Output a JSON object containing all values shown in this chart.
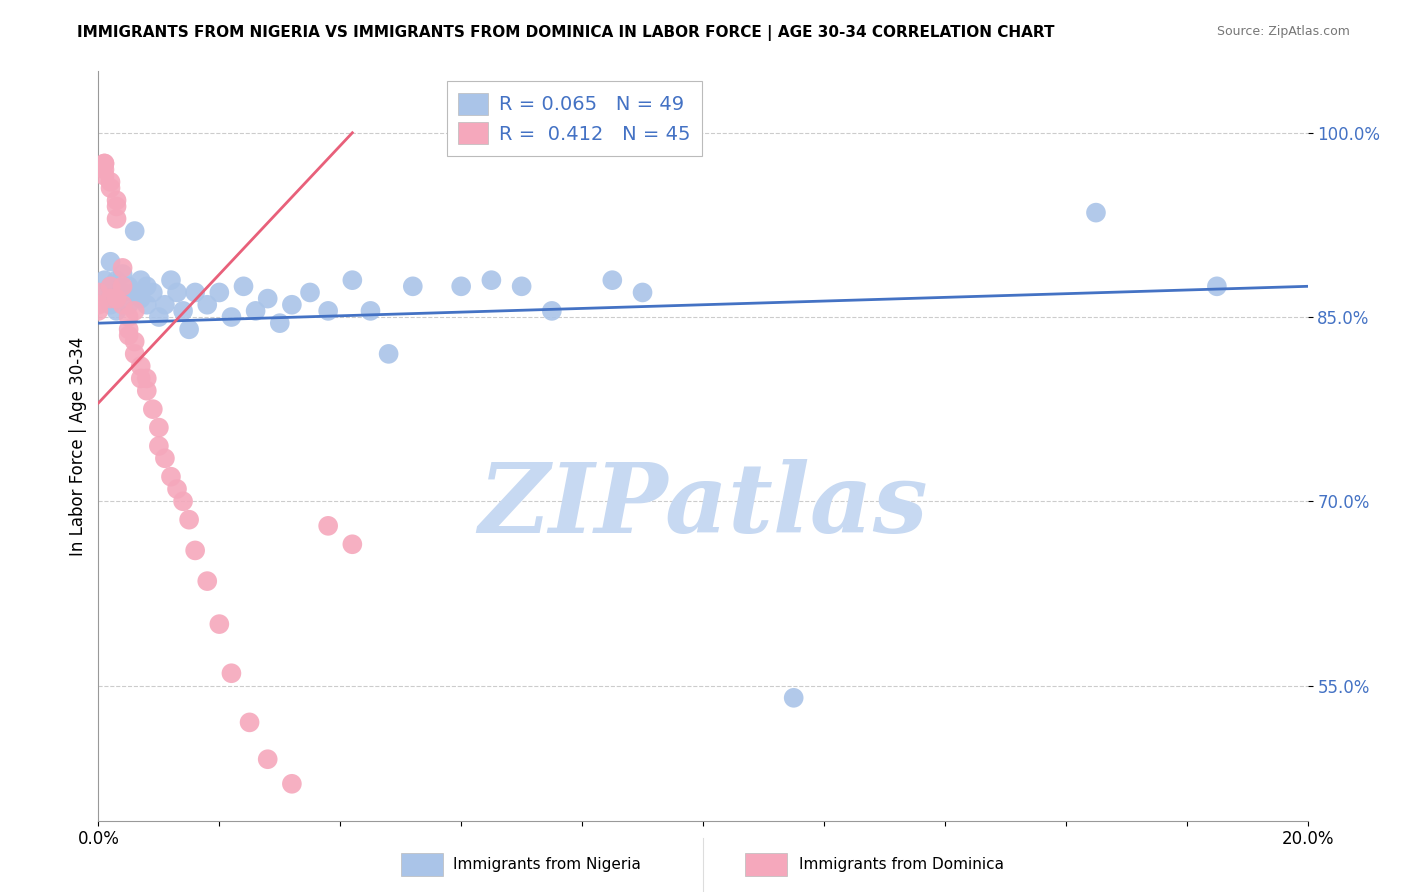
{
  "title": "IMMIGRANTS FROM NIGERIA VS IMMIGRANTS FROM DOMINICA IN LABOR FORCE | AGE 30-34 CORRELATION CHART",
  "source": "Source: ZipAtlas.com",
  "ylabel": "In Labor Force | Age 30-34",
  "xlim": [
    0.0,
    0.2
  ],
  "ylim": [
    0.44,
    1.05
  ],
  "xticks": [
    0.0,
    0.02,
    0.04,
    0.06,
    0.08,
    0.1,
    0.12,
    0.14,
    0.16,
    0.18,
    0.2
  ],
  "xticklabels": [
    "0.0%",
    "",
    "",
    "",
    "",
    "",
    "",
    "",
    "",
    "",
    "20.0%"
  ],
  "ytick_positions": [
    0.55,
    0.7,
    0.85,
    1.0
  ],
  "ytick_labels": [
    "55.0%",
    "70.0%",
    "85.0%",
    "100.0%"
  ],
  "nigeria_R": 0.065,
  "nigeria_N": 49,
  "dominica_R": 0.412,
  "dominica_N": 45,
  "nigeria_color": "#aac4e8",
  "dominica_color": "#f5a8bc",
  "nigeria_line_color": "#4472c4",
  "dominica_line_color": "#e8607a",
  "watermark": "ZIPatlas",
  "watermark_color_r": 0.78,
  "watermark_color_g": 0.85,
  "watermark_color_b": 0.95,
  "nigeria_x": [
    0.001,
    0.001,
    0.002,
    0.002,
    0.002,
    0.003,
    0.003,
    0.003,
    0.004,
    0.004,
    0.005,
    0.005,
    0.006,
    0.006,
    0.007,
    0.007,
    0.008,
    0.008,
    0.009,
    0.01,
    0.011,
    0.012,
    0.013,
    0.014,
    0.015,
    0.016,
    0.018,
    0.02,
    0.022,
    0.024,
    0.026,
    0.028,
    0.03,
    0.032,
    0.035,
    0.038,
    0.042,
    0.045,
    0.048,
    0.052,
    0.06,
    0.065,
    0.07,
    0.075,
    0.085,
    0.09,
    0.115,
    0.165,
    0.185
  ],
  "nigeria_y": [
    0.87,
    0.88,
    0.86,
    0.875,
    0.895,
    0.865,
    0.88,
    0.855,
    0.87,
    0.885,
    0.86,
    0.875,
    0.92,
    0.87,
    0.865,
    0.88,
    0.86,
    0.875,
    0.87,
    0.85,
    0.86,
    0.88,
    0.87,
    0.855,
    0.84,
    0.87,
    0.86,
    0.87,
    0.85,
    0.875,
    0.855,
    0.865,
    0.845,
    0.86,
    0.87,
    0.855,
    0.88,
    0.855,
    0.82,
    0.875,
    0.875,
    0.88,
    0.875,
    0.855,
    0.88,
    0.87,
    0.54,
    0.935,
    0.875
  ],
  "dominica_x": [
    0.0,
    0.0,
    0.0,
    0.001,
    0.001,
    0.001,
    0.001,
    0.002,
    0.002,
    0.002,
    0.002,
    0.003,
    0.003,
    0.003,
    0.003,
    0.004,
    0.004,
    0.004,
    0.005,
    0.005,
    0.005,
    0.006,
    0.006,
    0.006,
    0.007,
    0.007,
    0.008,
    0.008,
    0.009,
    0.01,
    0.01,
    0.011,
    0.012,
    0.013,
    0.014,
    0.015,
    0.016,
    0.018,
    0.02,
    0.022,
    0.025,
    0.028,
    0.032,
    0.038,
    0.042
  ],
  "dominica_y": [
    0.87,
    0.86,
    0.855,
    0.975,
    0.975,
    0.97,
    0.965,
    0.96,
    0.955,
    0.875,
    0.865,
    0.945,
    0.94,
    0.93,
    0.865,
    0.89,
    0.875,
    0.86,
    0.85,
    0.84,
    0.835,
    0.855,
    0.83,
    0.82,
    0.81,
    0.8,
    0.8,
    0.79,
    0.775,
    0.76,
    0.745,
    0.735,
    0.72,
    0.71,
    0.7,
    0.685,
    0.66,
    0.635,
    0.6,
    0.56,
    0.52,
    0.49,
    0.47,
    0.68,
    0.665
  ],
  "nigeria_line_x": [
    0.0,
    0.2
  ],
  "nigeria_line_y": [
    0.845,
    0.875
  ],
  "dominica_line_x": [
    0.0,
    0.042
  ],
  "dominica_line_y": [
    0.78,
    1.0
  ]
}
